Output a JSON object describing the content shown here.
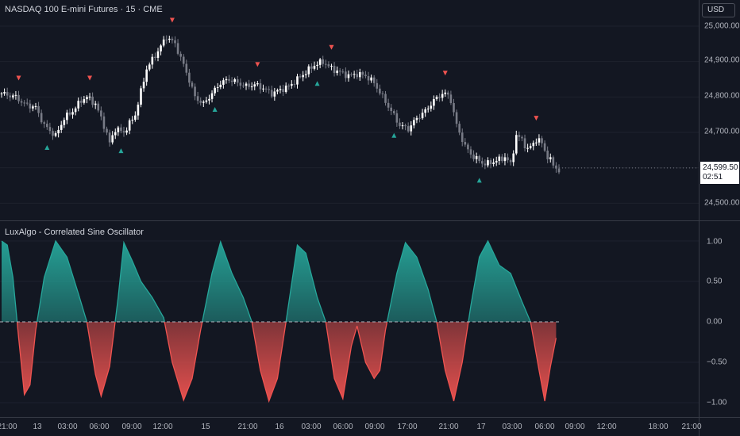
{
  "main": {
    "title": "NASDAQ 100 E-mini Futures · 15 · CME",
    "currency": "USD",
    "price_labels": [
      "25,000.00",
      "24,900.00",
      "24,800.00",
      "24,700.00",
      "24,500.00"
    ],
    "current_price": "24,599.50",
    "countdown": "02:51"
  },
  "oscillator": {
    "title": "LuxAlgo - Correlated Sine Oscillator",
    "level_labels": [
      "1.00",
      "0.50",
      "0.00",
      "−0.50",
      "−1.00"
    ]
  },
  "time_axis": {
    "labels": [
      "21:00",
      "13",
      "03:00",
      "06:00",
      "09:00",
      "12:00",
      "15",
      "21:00",
      "16",
      "03:00",
      "06:00",
      "09:00",
      "17:00",
      "21:00",
      "17",
      "03:00",
      "06:00",
      "09:00",
      "12:00",
      "18:00",
      "21:00"
    ]
  },
  "colors": {
    "background": "#131722",
    "bull": "#26a69a",
    "bear": "#ef5350",
    "candle_up": "#ffffff",
    "candle_down": "#787b86"
  },
  "chart_data": [
    {
      "type": "candlestick",
      "title": "NASDAQ 100 E-mini Futures · 15 · CME",
      "y_ticks": [
        25000,
        24900,
        24800,
        24700,
        24600,
        24500
      ],
      "ylim": [
        24470,
        25080
      ],
      "last_value": 24599.5,
      "close_path": [
        {
          "x": 0,
          "y": 24810
        },
        {
          "x": 5,
          "y": 24800
        },
        {
          "x": 8,
          "y": 24780
        },
        {
          "x": 12,
          "y": 24770
        },
        {
          "x": 15,
          "y": 24720
        },
        {
          "x": 19,
          "y": 24690
        },
        {
          "x": 22,
          "y": 24740
        },
        {
          "x": 25,
          "y": 24760
        },
        {
          "x": 28,
          "y": 24790
        },
        {
          "x": 30,
          "y": 24800
        },
        {
          "x": 33,
          "y": 24780
        },
        {
          "x": 36,
          "y": 24720
        },
        {
          "x": 38,
          "y": 24670
        },
        {
          "x": 40,
          "y": 24710
        },
        {
          "x": 43,
          "y": 24700
        },
        {
          "x": 47,
          "y": 24750
        },
        {
          "x": 51,
          "y": 24880
        },
        {
          "x": 55,
          "y": 24930
        },
        {
          "x": 58,
          "y": 24970
        },
        {
          "x": 61,
          "y": 24950
        },
        {
          "x": 65,
          "y": 24870
        },
        {
          "x": 68,
          "y": 24800
        },
        {
          "x": 71,
          "y": 24780
        },
        {
          "x": 74,
          "y": 24810
        },
        {
          "x": 77,
          "y": 24840
        },
        {
          "x": 80,
          "y": 24850
        },
        {
          "x": 83,
          "y": 24840
        },
        {
          "x": 86,
          "y": 24830
        },
        {
          "x": 89,
          "y": 24835
        },
        {
          "x": 92,
          "y": 24825
        },
        {
          "x": 95,
          "y": 24810
        },
        {
          "x": 98,
          "y": 24820
        },
        {
          "x": 101,
          "y": 24830
        },
        {
          "x": 104,
          "y": 24850
        },
        {
          "x": 107,
          "y": 24870
        },
        {
          "x": 110,
          "y": 24890
        },
        {
          "x": 113,
          "y": 24900
        },
        {
          "x": 116,
          "y": 24880
        },
        {
          "x": 119,
          "y": 24870
        },
        {
          "x": 122,
          "y": 24860
        },
        {
          "x": 125,
          "y": 24865
        },
        {
          "x": 128,
          "y": 24860
        },
        {
          "x": 131,
          "y": 24840
        },
        {
          "x": 134,
          "y": 24800
        },
        {
          "x": 137,
          "y": 24760
        },
        {
          "x": 140,
          "y": 24720
        },
        {
          "x": 143,
          "y": 24710
        },
        {
          "x": 146,
          "y": 24740
        },
        {
          "x": 149,
          "y": 24760
        },
        {
          "x": 152,
          "y": 24790
        },
        {
          "x": 155,
          "y": 24810
        },
        {
          "x": 157,
          "y": 24805
        },
        {
          "x": 158,
          "y": 24790
        },
        {
          "x": 160,
          "y": 24720
        },
        {
          "x": 163,
          "y": 24660
        },
        {
          "x": 166,
          "y": 24630
        },
        {
          "x": 170,
          "y": 24610
        },
        {
          "x": 174,
          "y": 24620
        },
        {
          "x": 177,
          "y": 24630
        },
        {
          "x": 179,
          "y": 24610
        },
        {
          "x": 181,
          "y": 24690
        },
        {
          "x": 183,
          "y": 24680
        },
        {
          "x": 185,
          "y": 24650
        },
        {
          "x": 188,
          "y": 24680
        },
        {
          "x": 190,
          "y": 24670
        },
        {
          "x": 192,
          "y": 24630
        },
        {
          "x": 194,
          "y": 24610
        },
        {
          "x": 196,
          "y": 24590
        }
      ],
      "up_arrows": [
        16,
        42,
        75,
        111,
        138,
        168
      ],
      "down_arrows": [
        6,
        31,
        60,
        90,
        116,
        156,
        188
      ]
    },
    {
      "type": "area",
      "title": "LuxAlgo - Correlated Sine Oscillator",
      "y_ticks": [
        1.0,
        0.5,
        0.0,
        -0.5,
        -1.0
      ],
      "ylim": [
        -1.2,
        1.2
      ],
      "series": [
        {
          "values": [
            {
              "x": 0,
              "y": 1.0
            },
            {
              "x": 2,
              "y": 0.95
            },
            {
              "x": 4,
              "y": 0.55
            },
            {
              "x": 6,
              "y": -0.2
            },
            {
              "x": 8,
              "y": -0.9
            },
            {
              "x": 10,
              "y": -0.78
            },
            {
              "x": 12,
              "y": -0.1
            },
            {
              "x": 15,
              "y": 0.55
            },
            {
              "x": 19,
              "y": 1.0
            },
            {
              "x": 23,
              "y": 0.8
            },
            {
              "x": 27,
              "y": 0.35
            },
            {
              "x": 30,
              "y": 0.0
            },
            {
              "x": 33,
              "y": -0.65
            },
            {
              "x": 35,
              "y": -0.92
            },
            {
              "x": 38,
              "y": -0.55
            },
            {
              "x": 41,
              "y": 0.3
            },
            {
              "x": 43,
              "y": 0.98
            },
            {
              "x": 46,
              "y": 0.75
            },
            {
              "x": 49,
              "y": 0.5
            },
            {
              "x": 53,
              "y": 0.3
            },
            {
              "x": 57,
              "y": 0.05
            },
            {
              "x": 60,
              "y": -0.5
            },
            {
              "x": 64,
              "y": -0.97
            },
            {
              "x": 67,
              "y": -0.7
            },
            {
              "x": 70,
              "y": -0.1
            },
            {
              "x": 74,
              "y": 0.6
            },
            {
              "x": 77,
              "y": 0.99
            },
            {
              "x": 81,
              "y": 0.6
            },
            {
              "x": 85,
              "y": 0.3
            },
            {
              "x": 88,
              "y": 0.0
            },
            {
              "x": 91,
              "y": -0.6
            },
            {
              "x": 94,
              "y": -0.98
            },
            {
              "x": 97,
              "y": -0.7
            },
            {
              "x": 100,
              "y": 0.0
            },
            {
              "x": 104,
              "y": 0.95
            },
            {
              "x": 107,
              "y": 0.85
            },
            {
              "x": 111,
              "y": 0.3
            },
            {
              "x": 114,
              "y": 0.0
            },
            {
              "x": 117,
              "y": -0.7
            },
            {
              "x": 120,
              "y": -0.95
            },
            {
              "x": 123,
              "y": -0.3
            },
            {
              "x": 125,
              "y": -0.05
            },
            {
              "x": 128,
              "y": -0.5
            },
            {
              "x": 131,
              "y": -0.7
            },
            {
              "x": 133,
              "y": -0.6
            },
            {
              "x": 135,
              "y": -0.1
            },
            {
              "x": 139,
              "y": 0.6
            },
            {
              "x": 142,
              "y": 0.98
            },
            {
              "x": 146,
              "y": 0.8
            },
            {
              "x": 150,
              "y": 0.4
            },
            {
              "x": 153,
              "y": 0.0
            },
            {
              "x": 156,
              "y": -0.6
            },
            {
              "x": 159,
              "y": -0.98
            },
            {
              "x": 162,
              "y": -0.5
            },
            {
              "x": 165,
              "y": 0.2
            },
            {
              "x": 168,
              "y": 0.8
            },
            {
              "x": 171,
              "y": 1.0
            },
            {
              "x": 175,
              "y": 0.7
            },
            {
              "x": 179,
              "y": 0.6
            },
            {
              "x": 183,
              "y": 0.25
            },
            {
              "x": 186,
              "y": 0.0
            },
            {
              "x": 189,
              "y": -0.6
            },
            {
              "x": 191,
              "y": -0.98
            },
            {
              "x": 193,
              "y": -0.55
            },
            {
              "x": 195,
              "y": -0.2
            }
          ]
        }
      ],
      "reference_line": 0.0
    }
  ]
}
